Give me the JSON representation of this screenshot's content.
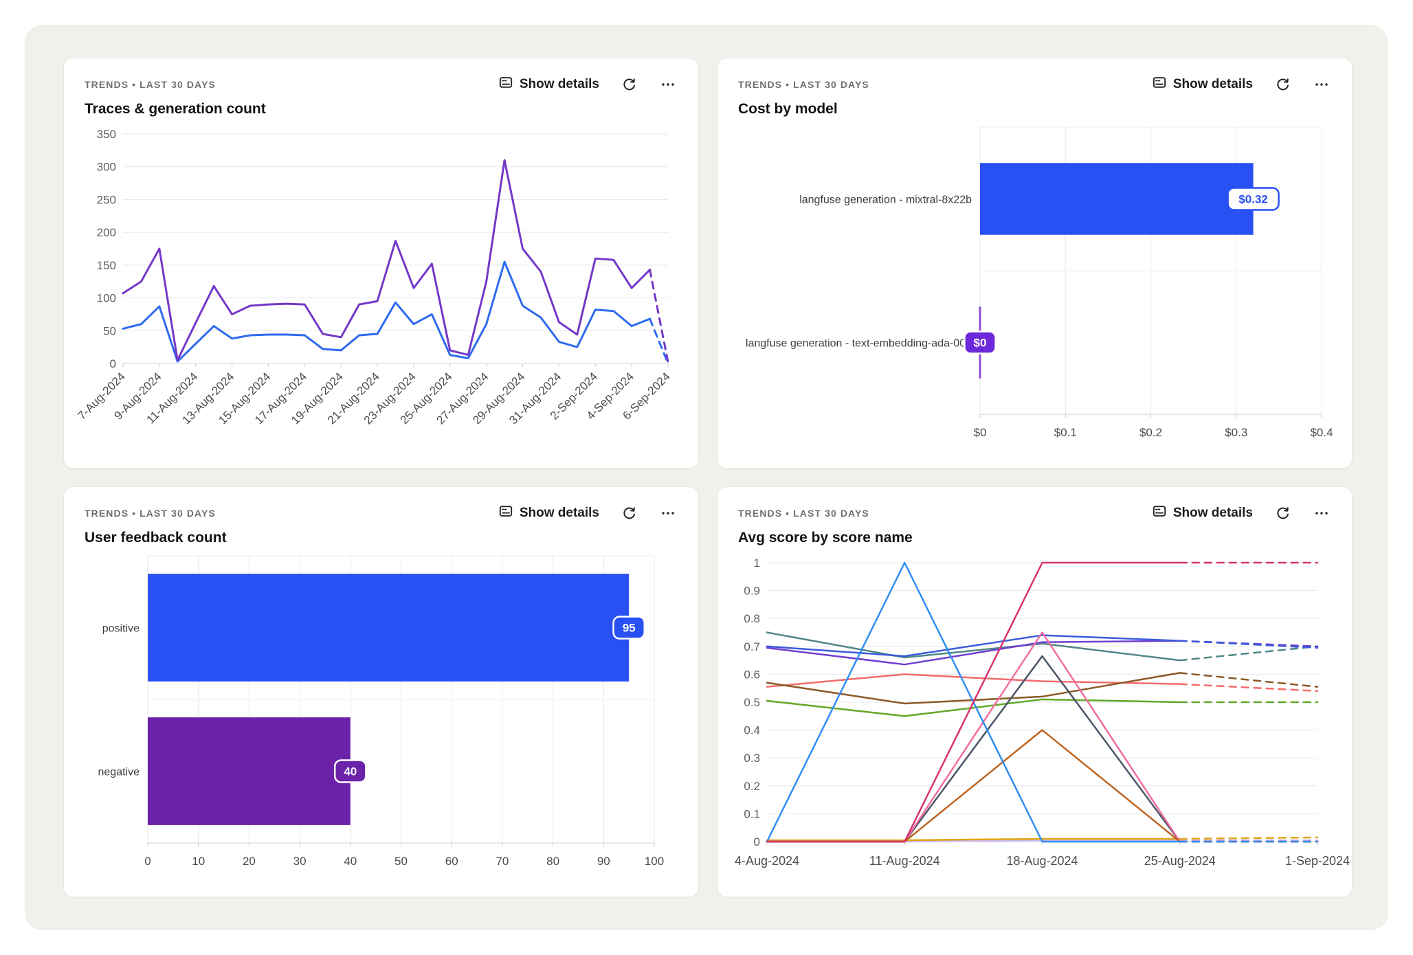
{
  "panels": [
    {
      "eyebrow": "TRENDS • LAST 30 DAYS",
      "title": "Traces & generation count",
      "show_details": "Show details",
      "icons": {
        "details": "card-lines-icon",
        "refresh": "refresh-icon",
        "menu": "ellipsis-icon"
      }
    },
    {
      "eyebrow": "TRENDS • LAST 30 DAYS",
      "title": "Cost by model",
      "show_details": "Show details",
      "icons": {
        "details": "card-lines-icon",
        "refresh": "refresh-icon",
        "menu": "ellipsis-icon"
      }
    },
    {
      "eyebrow": "TRENDS • LAST 30 DAYS",
      "title": "User feedback count",
      "show_details": "Show details",
      "icons": {
        "details": "card-lines-icon",
        "refresh": "refresh-icon",
        "menu": "ellipsis-icon"
      }
    },
    {
      "eyebrow": "TRENDS • LAST 30 DAYS",
      "title": "Avg score by score name",
      "show_details": "Show details",
      "icons": {
        "details": "card-lines-icon",
        "refresh": "refresh-icon",
        "menu": "ellipsis-icon"
      }
    }
  ],
  "chart_data": [
    {
      "type": "line",
      "title": "Traces & generation count",
      "x": [
        "7-Aug-2024",
        "8-Aug-2024",
        "9-Aug-2024",
        "10-Aug-2024",
        "11-Aug-2024",
        "12-Aug-2024",
        "13-Aug-2024",
        "14-Aug-2024",
        "15-Aug-2024",
        "16-Aug-2024",
        "17-Aug-2024",
        "18-Aug-2024",
        "19-Aug-2024",
        "20-Aug-2024",
        "21-Aug-2024",
        "22-Aug-2024",
        "23-Aug-2024",
        "24-Aug-2024",
        "25-Aug-2024",
        "26-Aug-2024",
        "27-Aug-2024",
        "28-Aug-2024",
        "29-Aug-2024",
        "30-Aug-2024",
        "31-Aug-2024",
        "1-Sep-2024",
        "2-Sep-2024",
        "3-Sep-2024",
        "4-Sep-2024",
        "5-Sep-2024",
        "6-Sep-2024"
      ],
      "x_tick_every": 2,
      "ylim": [
        0,
        350
      ],
      "ytick_values": [
        0,
        50,
        100,
        150,
        200,
        250,
        300,
        350
      ],
      "ytick_labels": [
        "0",
        "50",
        "100",
        "150",
        "200",
        "250",
        "300",
        "350"
      ],
      "dashed_tail_segments": 1,
      "grid": "horizontal",
      "legend": "none",
      "series": [
        {
          "color": "#2f6bf0",
          "values": [
            53,
            60,
            87,
            3,
            30,
            57,
            38,
            43,
            44,
            44,
            43,
            22,
            20,
            43,
            45,
            93,
            60,
            75,
            13,
            8,
            60,
            155,
            88,
            70,
            33,
            25,
            82,
            80,
            57,
            68,
            0
          ]
        },
        {
          "color": "#7438c9",
          "values": [
            107,
            125,
            175,
            5,
            62,
            118,
            75,
            88,
            90,
            91,
            90,
            45,
            40,
            90,
            95,
            187,
            115,
            152,
            20,
            13,
            125,
            310,
            175,
            140,
            63,
            44,
            160,
            158,
            115,
            143,
            2
          ]
        }
      ]
    },
    {
      "type": "bar",
      "orientation": "horizontal",
      "title": "Cost by model",
      "categories": [
        "langfuse generation - mixtral-8x22b",
        "langfuse generation - text-embedding-ada-002"
      ],
      "values": [
        0.32,
        0
      ],
      "value_labels": [
        "$0.32",
        "$0"
      ],
      "bar_colors": [
        "#2950f2",
        "#8a4fd4"
      ],
      "badge_styles": [
        "outline",
        "filled"
      ],
      "badge_colors": [
        "#2950f2",
        "#6d28d9"
      ],
      "xlim": [
        0,
        0.4
      ],
      "xtick_values": [
        0,
        0.1,
        0.2,
        0.3,
        0.4
      ],
      "xtick_labels": [
        "$0",
        "$0.1",
        "$0.2",
        "$0.3",
        "$0.4"
      ],
      "grid": "vertical",
      "legend": "none"
    },
    {
      "type": "bar",
      "orientation": "horizontal",
      "title": "User feedback count",
      "categories": [
        "positive",
        "negative"
      ],
      "values": [
        95,
        40
      ],
      "value_labels": [
        "95",
        "40"
      ],
      "bar_colors": [
        "#2950f2",
        "#6b21a8"
      ],
      "badge_styles": [
        "filled",
        "filled"
      ],
      "badge_colors": [
        "#2950f2",
        "#6b21a8"
      ],
      "xlim": [
        0,
        100
      ],
      "xtick_values": [
        0,
        10,
        20,
        30,
        40,
        50,
        60,
        70,
        80,
        90,
        100
      ],
      "xtick_labels": [
        "0",
        "10",
        "20",
        "30",
        "40",
        "50",
        "60",
        "70",
        "80",
        "90",
        "100"
      ],
      "grid": "vertical",
      "legend": "none"
    },
    {
      "type": "line",
      "title": "Avg score by score name",
      "x": [
        "4-Aug-2024",
        "11-Aug-2024",
        "18-Aug-2024",
        "25-Aug-2024",
        "1-Sep-2024"
      ],
      "x_tick_every": 1,
      "ylim": [
        0,
        1
      ],
      "ytick_values": [
        0,
        0.1,
        0.2,
        0.3,
        0.4,
        0.5,
        0.6,
        0.7,
        0.8,
        0.9,
        1
      ],
      "ytick_labels": [
        "0",
        "0.1",
        "0.2",
        "0.3",
        "0.4",
        "0.5",
        "0.6",
        "0.7",
        "0.8",
        "0.9",
        "1"
      ],
      "dashed_tail_segments": 1,
      "grid": "horizontal",
      "legend": "none",
      "series": [
        {
          "color": "#c9b8f9",
          "values": [
            0,
            0,
            0.005,
            0.005,
            0.005
          ]
        },
        {
          "color": "#e2a615",
          "values": [
            0.005,
            0.005,
            0.01,
            0.01,
            0.015
          ]
        },
        {
          "color": "#f36c6c",
          "values": [
            0.555,
            0.6,
            0.575,
            0.565,
            0.54
          ]
        },
        {
          "color": "#61a827",
          "values": [
            0.505,
            0.45,
            0.51,
            0.5,
            0.5
          ]
        },
        {
          "color": "#8c5a28",
          "values": [
            0.57,
            0.495,
            0.52,
            0.605,
            0.555
          ]
        },
        {
          "color": "#4f8787",
          "values": [
            0.75,
            0.66,
            0.71,
            0.65,
            0.7
          ]
        },
        {
          "color": "#6f3fd1",
          "values": [
            0.695,
            0.635,
            0.715,
            0.72,
            0.7
          ]
        },
        {
          "color": "#3b5bdb",
          "values": [
            0.7,
            0.665,
            0.74,
            0.72,
            0.695
          ]
        },
        {
          "color": "#4a5568",
          "values": [
            0,
            0,
            0.665,
            0,
            0
          ]
        },
        {
          "color": "#f06ea0",
          "values": [
            0,
            0,
            0.75,
            0,
            0
          ]
        },
        {
          "color": "#bf6420",
          "values": [
            0,
            0,
            0.4,
            0,
            0
          ]
        },
        {
          "color": "#2f8ef5",
          "values": [
            0,
            1,
            0,
            0,
            0
          ]
        },
        {
          "color": "#d6336c",
          "values": [
            0,
            0,
            1,
            1,
            1
          ]
        }
      ]
    }
  ]
}
